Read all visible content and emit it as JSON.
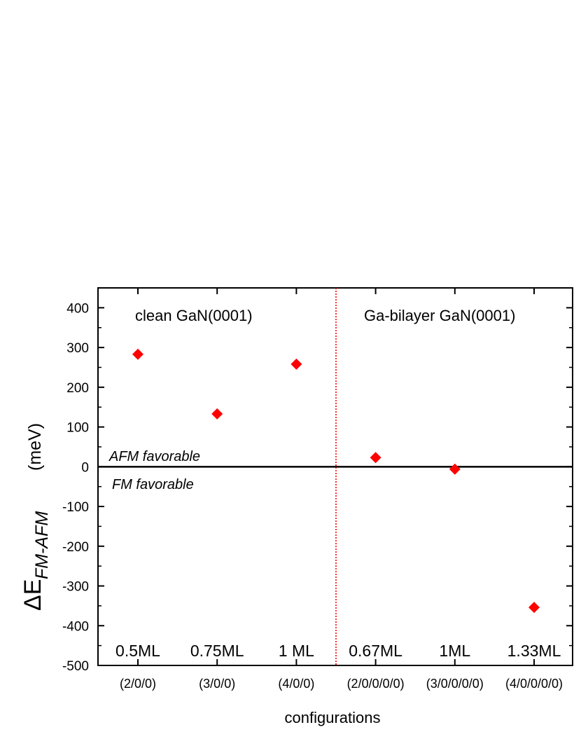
{
  "chart_data": {
    "type": "scatter",
    "xlabel": "configurations",
    "ylabel_main": "ΔE",
    "ylabel_sub": "FM-AFM",
    "ylabel_unit": "(meV)",
    "ylim": [
      -500,
      450
    ],
    "yticks": [
      -500,
      -400,
      -300,
      -200,
      -100,
      0,
      100,
      200,
      300,
      400
    ],
    "categories": [
      "(2/0/0)",
      "(3/0/0)",
      "(4/0/0)",
      "(2/0/0/0/0)",
      "(3/0/0/0/0)",
      "(4/0/0/0/0)"
    ],
    "coverage_labels": [
      "0.5ML",
      "0.75ML",
      "1 ML",
      "0.67ML",
      "1ML",
      "1.33ML"
    ],
    "series": [
      {
        "values": [
          283,
          133,
          258,
          23,
          -6,
          -354
        ],
        "color": "#ff0000",
        "marker": "diamond"
      }
    ],
    "annotations": {
      "region_left": "clean GaN(0001)",
      "region_right": "Ga-bilayer GaN(0001)",
      "above_zero": "AFM favorable",
      "below_zero": "FM favorable"
    },
    "reference_line_y": 0,
    "divider_color": "#ff0000"
  }
}
